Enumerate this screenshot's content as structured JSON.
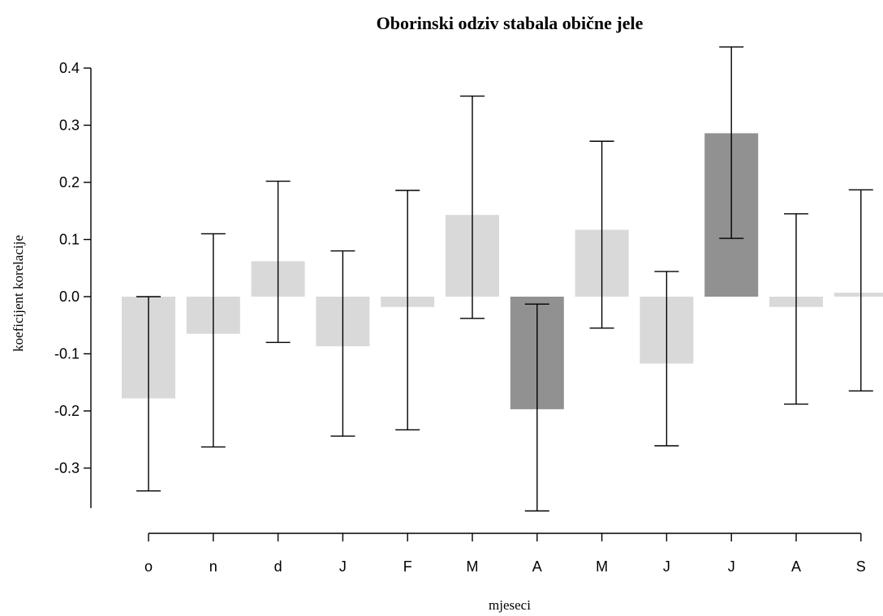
{
  "chart_data": {
    "type": "bar",
    "title": "Oborinski odziv stabala obične jele",
    "xlabel": "mjeseci",
    "ylabel": "koeficijent korelacije",
    "ylim": [
      -0.38,
      0.42
    ],
    "yticks": [
      -0.3,
      -0.2,
      -0.1,
      0.0,
      0.1,
      0.2,
      0.3,
      0.4
    ],
    "ytick_labels": [
      "-0.3",
      "-0.2",
      "-0.1",
      "0.0",
      "0.1",
      "0.2",
      "0.3",
      "0.4"
    ],
    "categories": [
      "o",
      "n",
      "d",
      "J",
      "F",
      "M",
      "A",
      "M",
      "J",
      "J",
      "A",
      "S"
    ],
    "values": [
      -0.178,
      -0.065,
      0.062,
      -0.087,
      -0.018,
      0.143,
      -0.197,
      0.117,
      -0.117,
      0.286,
      -0.018,
      0.007
    ],
    "ci_lower": [
      -0.34,
      -0.263,
      -0.08,
      -0.244,
      -0.233,
      -0.038,
      -0.375,
      -0.055,
      -0.261,
      0.102,
      -0.188,
      -0.165
    ],
    "ci_upper": [
      0.0,
      0.11,
      0.202,
      0.08,
      0.186,
      0.351,
      -0.013,
      0.272,
      0.044,
      0.437,
      0.145,
      0.187
    ],
    "significant": [
      false,
      false,
      false,
      false,
      false,
      false,
      true,
      false,
      false,
      true,
      false,
      false
    ],
    "colors": {
      "normal": "#d9d9d9",
      "significant": "#919191",
      "axis": "#000000"
    },
    "grid": false,
    "legend": "none"
  }
}
